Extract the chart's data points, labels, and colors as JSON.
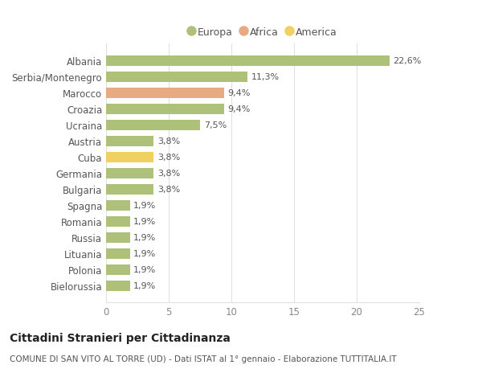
{
  "categories": [
    "Albania",
    "Serbia/Montenegro",
    "Marocco",
    "Croazia",
    "Ucraina",
    "Austria",
    "Cuba",
    "Germania",
    "Bulgaria",
    "Spagna",
    "Romania",
    "Russia",
    "Lituania",
    "Polonia",
    "Bielorussia"
  ],
  "values": [
    22.6,
    11.3,
    9.4,
    9.4,
    7.5,
    3.8,
    3.8,
    3.8,
    3.8,
    1.9,
    1.9,
    1.9,
    1.9,
    1.9,
    1.9
  ],
  "labels": [
    "22,6%",
    "11,3%",
    "9,4%",
    "9,4%",
    "7,5%",
    "3,8%",
    "3,8%",
    "3,8%",
    "3,8%",
    "1,9%",
    "1,9%",
    "1,9%",
    "1,9%",
    "1,9%",
    "1,9%"
  ],
  "continent": [
    "Europa",
    "Europa",
    "Africa",
    "Europa",
    "Europa",
    "Europa",
    "America",
    "Europa",
    "Europa",
    "Europa",
    "Europa",
    "Europa",
    "Europa",
    "Europa",
    "Europa"
  ],
  "colors": {
    "Europa": "#adc178",
    "Africa": "#e8aa80",
    "America": "#f0d060"
  },
  "legend_items": [
    "Europa",
    "Africa",
    "America"
  ],
  "legend_colors": [
    "#adc178",
    "#e8aa80",
    "#f0d060"
  ],
  "xlim": [
    0,
    25
  ],
  "xticks": [
    0,
    5,
    10,
    15,
    20,
    25
  ],
  "title1": "Cittadini Stranieri per Cittadinanza",
  "title2": "COMUNE DI SAN VITO AL TORRE (UD) - Dati ISTAT al 1° gennaio - Elaborazione TUTTITALIA.IT",
  "background_color": "#ffffff",
  "grid_color": "#e0e0e0",
  "label_fontsize": 8.5,
  "tick_fontsize": 8.5,
  "value_fontsize": 8.0,
  "title1_fontsize": 10,
  "title2_fontsize": 7.5,
  "bar_height": 0.65
}
